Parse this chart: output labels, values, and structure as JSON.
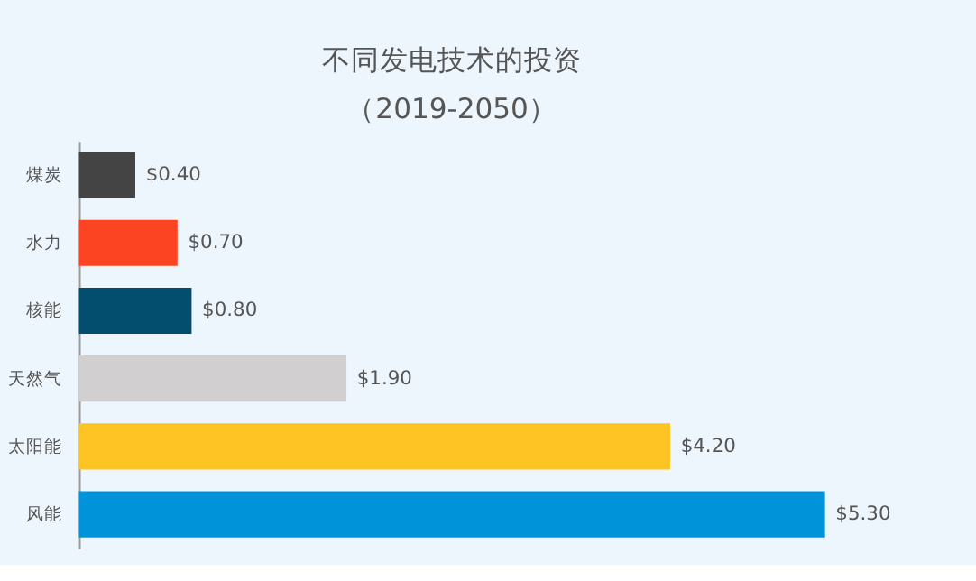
{
  "chart_data": {
    "type": "bar",
    "orientation": "horizontal",
    "title": "不同发电技术的投资",
    "subtitle": "（2019-2050）",
    "categories": [
      "煤炭",
      "水力",
      "核能",
      "天然气",
      "太阳能",
      "风能"
    ],
    "values": [
      0.4,
      0.7,
      0.8,
      1.9,
      4.2,
      5.3
    ],
    "value_labels": [
      "$0.40",
      "$0.70",
      "$0.80",
      "$1.90",
      "$4.20",
      "$5.30"
    ],
    "colors": [
      "#444444",
      "#fd4422",
      "#034d6e",
      "#d1cfd0",
      "#fdc424",
      "#0193d9"
    ]
  }
}
